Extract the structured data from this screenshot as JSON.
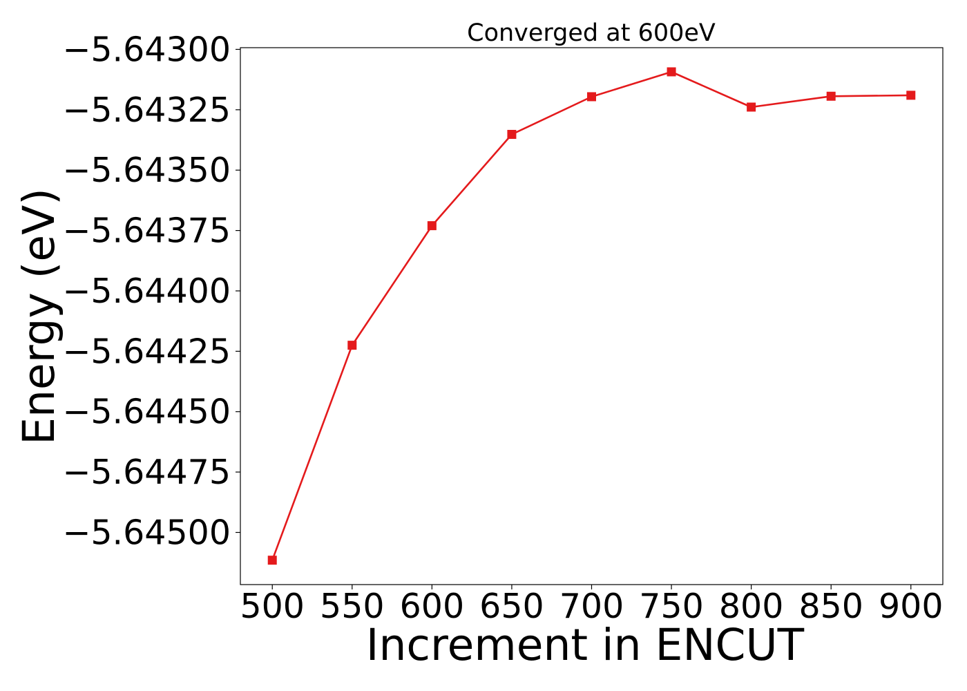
{
  "chart_data": {
    "type": "line",
    "title": "Converged at 600eV",
    "xlabel": "Increment in ENCUT",
    "ylabel": "Energy (eV)",
    "x": [
      500,
      550,
      600,
      650,
      700,
      750,
      800,
      850,
      900
    ],
    "series": [
      {
        "values": [
          -5.645115,
          -5.644225,
          -5.64373,
          -5.643352,
          -5.643196,
          -5.643093,
          -5.643239,
          -5.643194,
          -5.64319
        ],
        "color": "#e41a1c",
        "marker": "square"
      }
    ],
    "xlim": [
      480,
      920
    ],
    "ylim": [
      -5.645216,
      -5.642993
    ],
    "xticks": [
      "500",
      "550",
      "600",
      "650",
      "700",
      "750",
      "800",
      "850",
      "900"
    ],
    "yticks": [
      -5.645,
      -5.64475,
      -5.6445,
      -5.64425,
      -5.644,
      -5.64375,
      -5.6435,
      -5.64325,
      -5.643
    ],
    "ytick_labels": [
      "−5.64500",
      "−5.64475",
      "−5.64450",
      "−5.64425",
      "−5.64400",
      "−5.64375",
      "−5.64350",
      "−5.64325",
      "−5.64300"
    ],
    "grid": false,
    "legend": "none"
  }
}
